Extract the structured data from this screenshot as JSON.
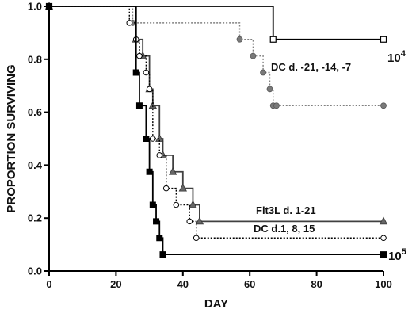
{
  "chart_data": {
    "type": "line",
    "step": true,
    "xlabel": "DAY",
    "ylabel": "PROPORTION SURVIVING",
    "xlim": [
      0,
      100
    ],
    "ylim": [
      0,
      1.0
    ],
    "xticks": [
      0,
      20,
      40,
      60,
      80,
      100
    ],
    "yticks": [
      0.0,
      0.2,
      0.4,
      0.6,
      0.8,
      1.0
    ],
    "xtick_labels": [
      "0",
      "20",
      "40",
      "60",
      "80",
      "100"
    ],
    "ytick_labels": [
      "0.0",
      "0.2",
      "0.4",
      "0.6",
      "0.8",
      "1.0"
    ],
    "grid": false,
    "legend": "none",
    "annotations": [
      {
        "text": "10",
        "superscript": "4"
      },
      {
        "text": "DC d. -21, -14, -7"
      },
      {
        "text": "Flt3L d. 1-21"
      },
      {
        "text": "DC d.1, 8, 15"
      },
      {
        "text": "10",
        "superscript": "5"
      }
    ],
    "series": [
      {
        "marker": "open-square",
        "line": "solid",
        "color": "#000000",
        "x": [
          0,
          67,
          100
        ],
        "y": [
          1.0,
          0.875,
          0.875
        ]
      },
      {
        "marker": "gray-circle",
        "line": "dotted",
        "color": "#808080",
        "x": [
          0,
          25,
          57,
          61,
          64,
          66,
          67,
          68,
          100
        ],
        "y": [
          1.0,
          0.9375,
          0.875,
          0.8125,
          0.75,
          0.6875,
          0.625,
          0.625,
          0.625
        ]
      },
      {
        "marker": "gray-triangle",
        "line": "solid",
        "color": "#404040",
        "x": [
          0,
          26,
          28,
          30,
          31,
          33,
          34,
          37,
          40,
          43,
          45,
          100
        ],
        "y": [
          1.0,
          0.875,
          0.8125,
          0.6875,
          0.625,
          0.5,
          0.4375,
          0.375,
          0.3125,
          0.25,
          0.1875,
          0.1875
        ]
      },
      {
        "marker": "open-circle",
        "line": "dotted",
        "color": "#000000",
        "x": [
          0,
          24,
          26,
          27,
          29,
          30,
          31,
          33,
          35,
          38,
          42,
          44,
          100
        ],
        "y": [
          1.0,
          0.9375,
          0.875,
          0.8125,
          0.75,
          0.6875,
          0.5,
          0.4375,
          0.3125,
          0.25,
          0.1875,
          0.125,
          0.125
        ]
      },
      {
        "marker": "black-square",
        "line": "solid",
        "color": "#000000",
        "x": [
          0,
          26,
          27,
          29,
          30,
          31,
          32,
          33,
          34,
          100
        ],
        "y": [
          1.0,
          0.75,
          0.625,
          0.5,
          0.375,
          0.25,
          0.1875,
          0.125,
          0.0625,
          0.0625
        ]
      }
    ]
  }
}
